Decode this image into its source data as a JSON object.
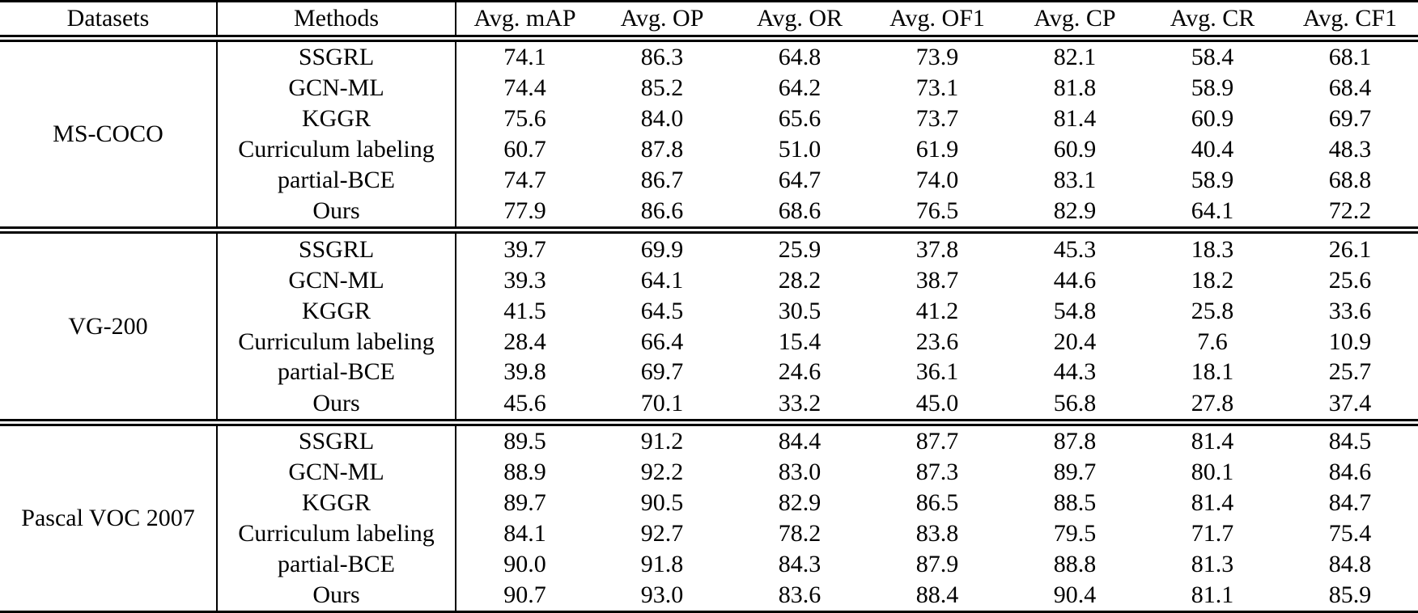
{
  "colors": {
    "text": "#000000",
    "background": "#ffffff",
    "rule": "#000000"
  },
  "table": {
    "columns": [
      "Datasets",
      "Methods",
      "Avg. mAP",
      "Avg. OP",
      "Avg. OR",
      "Avg. OF1",
      "Avg. CP",
      "Avg. CR",
      "Avg. CF1"
    ],
    "sections": [
      {
        "dataset": "MS-COCO",
        "rows": [
          {
            "method": "SSGRL",
            "values": [
              "74.1",
              "86.3",
              "64.8",
              "73.9",
              "82.1",
              "58.4",
              "68.1"
            ],
            "bold": []
          },
          {
            "method": "GCN-ML",
            "values": [
              "74.4",
              "85.2",
              "64.2",
              "73.1",
              "81.8",
              "58.9",
              "68.4"
            ],
            "bold": []
          },
          {
            "method": "KGGR",
            "values": [
              "75.6",
              "84.0",
              "65.6",
              "73.7",
              "81.4",
              "60.9",
              "69.7"
            ],
            "bold": []
          },
          {
            "method": "Curriculum labeling",
            "values": [
              "60.7",
              "87.8",
              "51.0",
              "61.9",
              "60.9",
              "40.4",
              "48.3"
            ],
            "bold": []
          },
          {
            "method": "partial-BCE",
            "values": [
              "74.7",
              "86.7",
              "64.7",
              "74.0",
              "83.1",
              "58.9",
              "68.8"
            ],
            "bold": [
              1,
              4
            ]
          },
          {
            "method": "Ours",
            "values": [
              "77.9",
              "86.6",
              "68.6",
              "76.5",
              "82.9",
              "64.1",
              "72.2"
            ],
            "bold": [
              0,
              2,
              3,
              5,
              6
            ]
          }
        ]
      },
      {
        "dataset": "VG-200",
        "rows": [
          {
            "method": "SSGRL",
            "values": [
              "39.7",
              "69.9",
              "25.9",
              "37.8",
              "45.3",
              "18.3",
              "26.1"
            ],
            "bold": []
          },
          {
            "method": "GCN-ML",
            "values": [
              "39.3",
              "64.1",
              "28.2",
              "38.7",
              "44.6",
              "18.2",
              "25.6"
            ],
            "bold": []
          },
          {
            "method": "KGGR",
            "values": [
              "41.5",
              "64.5",
              "30.5",
              "41.2",
              "54.8",
              "25.8",
              "33.6"
            ],
            "bold": []
          },
          {
            "method": "Curriculum labeling",
            "values": [
              "28.4",
              "66.4",
              "15.4",
              "23.6",
              "20.4",
              "7.6",
              "10.9"
            ],
            "bold": []
          },
          {
            "method": "partial-BCE",
            "values": [
              "39.8",
              "69.7",
              "24.6",
              "36.1",
              "44.3",
              "18.1",
              "25.7"
            ],
            "bold": []
          },
          {
            "method": "Ours",
            "values": [
              "45.6",
              "70.1",
              "33.2",
              "45.0",
              "56.8",
              "27.8",
              "37.4"
            ],
            "bold": [
              0,
              1,
              2,
              3,
              4,
              5,
              6
            ]
          }
        ]
      },
      {
        "dataset": "Pascal VOC 2007",
        "rows": [
          {
            "method": "SSGRL",
            "values": [
              "89.5",
              "91.2",
              "84.4",
              "87.7",
              "87.8",
              "81.4",
              "84.5"
            ],
            "bold": [
              2,
              5
            ]
          },
          {
            "method": "GCN-ML",
            "values": [
              "88.9",
              "92.2",
              "83.0",
              "87.3",
              "89.7",
              "80.1",
              "84.6"
            ],
            "bold": []
          },
          {
            "method": "KGGR",
            "values": [
              "89.7",
              "90.5",
              "82.9",
              "86.5",
              "88.5",
              "81.4",
              "84.7"
            ],
            "bold": []
          },
          {
            "method": "Curriculum labeling",
            "values": [
              "84.1",
              "92.7",
              "78.2",
              "83.8",
              "79.5",
              "71.7",
              "75.4"
            ],
            "bold": []
          },
          {
            "method": "partial-BCE",
            "values": [
              "90.0",
              "91.8",
              "84.3",
              "87.9",
              "88.8",
              "81.3",
              "84.8"
            ],
            "bold": []
          },
          {
            "method": "Ours",
            "values": [
              "90.7",
              "93.0",
              "83.6",
              "88.4",
              "90.4",
              "81.1",
              "85.9"
            ],
            "bold": [
              0,
              1,
              3,
              4,
              6
            ]
          }
        ]
      }
    ]
  }
}
